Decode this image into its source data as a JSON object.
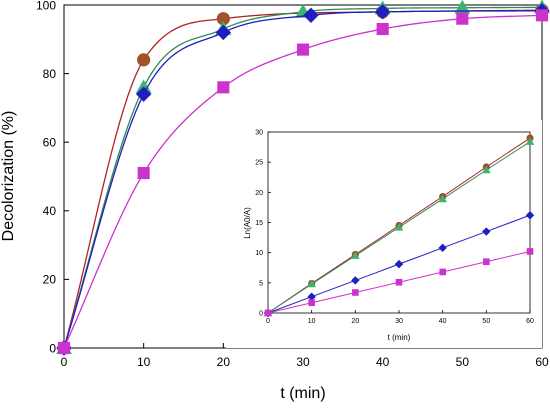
{
  "chart_data": [
    {
      "type": "line",
      "title": "",
      "xlabel": "t (min)",
      "ylabel": "Decolorization (%)",
      "xlim": [
        0,
        60
      ],
      "ylim": [
        0,
        100
      ],
      "x_ticks": [
        "0",
        "10",
        "20",
        "30",
        "40",
        "50",
        "60"
      ],
      "y_ticks": [
        "0",
        "20",
        "40",
        "60",
        "80",
        "100"
      ],
      "grid": false,
      "series": [
        {
          "marker": "circle",
          "color": "#a0522d",
          "line_color": "#b22222",
          "x": [
            0,
            10,
            20,
            40,
            60
          ],
          "y": [
            0,
            84,
            96,
            98,
            98.5
          ]
        },
        {
          "marker": "triangle",
          "color": "#3cb371",
          "line_color": "#2e8b57",
          "x": [
            0,
            10,
            20,
            30,
            40,
            50,
            60
          ],
          "y": [
            0,
            76,
            93,
            98,
            99,
            99.2,
            99.3
          ]
        },
        {
          "marker": "diamond",
          "color": "#1f1fbf",
          "line_color": "#1f1fbf",
          "x": [
            0,
            10,
            20,
            31,
            40,
            60
          ],
          "y": [
            0,
            74,
            92,
            97,
            98,
            98.3
          ]
        },
        {
          "marker": "square",
          "color": "#cc33cc",
          "line_color": "#cc33cc",
          "x": [
            0,
            10,
            20,
            30,
            40,
            50,
            60
          ],
          "y": [
            0,
            51,
            76,
            87,
            93,
            96,
            97
          ]
        }
      ]
    },
    {
      "type": "line",
      "title": "",
      "xlabel": "t (min)",
      "ylabel": "Ln(A0/A)",
      "xlim": [
        0,
        60
      ],
      "ylim": [
        0,
        30
      ],
      "x_ticks": [
        "0",
        "10",
        "20",
        "30",
        "40",
        "50",
        "60"
      ],
      "y_ticks": [
        "0",
        "5",
        "10",
        "15",
        "20",
        "25",
        "30"
      ],
      "grid": false,
      "series": [
        {
          "marker": "circle",
          "color": "#a0522d",
          "line_color": "#b22222",
          "x": [
            0,
            10,
            20,
            30,
            40,
            50,
            60
          ],
          "y": [
            0,
            4.9,
            9.7,
            14.5,
            19.3,
            24.2,
            29.0
          ]
        },
        {
          "marker": "triangle",
          "color": "#3cb371",
          "line_color": "#2e8b57",
          "x": [
            0,
            10,
            20,
            30,
            40,
            50,
            60
          ],
          "y": [
            0,
            4.8,
            9.5,
            14.2,
            18.9,
            23.7,
            28.4
          ]
        },
        {
          "marker": "diamond",
          "color": "#1f1fbf",
          "line_color": "#1f1fbf",
          "x": [
            0,
            10,
            20,
            30,
            40,
            50,
            60
          ],
          "y": [
            0,
            2.7,
            5.4,
            8.1,
            10.8,
            13.5,
            16.2
          ]
        },
        {
          "marker": "square",
          "color": "#cc33cc",
          "line_color": "#cc33cc",
          "x": [
            0,
            10,
            20,
            30,
            40,
            50,
            60
          ],
          "y": [
            0,
            1.7,
            3.4,
            5.1,
            6.8,
            8.5,
            10.2
          ]
        }
      ]
    }
  ]
}
